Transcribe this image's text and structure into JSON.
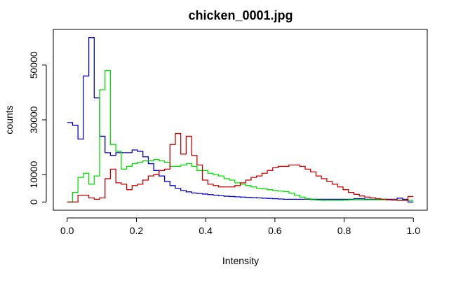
{
  "chart_data": {
    "type": "line",
    "title": "chicken_0001.jpg",
    "xlabel": "Intensity",
    "ylabel": "counts",
    "xlim": [
      -0.04,
      1.04
    ],
    "ylim": [
      -3000,
      63000
    ],
    "x_ticks": [
      0.0,
      0.2,
      0.4,
      0.6,
      0.8,
      1.0
    ],
    "x_tick_labels": [
      "0.0",
      "0.2",
      "0.4",
      "0.6",
      "0.8",
      "1.0"
    ],
    "y_ticks": [
      0,
      10000,
      30000,
      50000
    ],
    "y_tick_labels": [
      "0",
      "10000",
      "30000",
      "50000"
    ],
    "grid": false,
    "legend": "none",
    "step_style": "histogram",
    "bin_width": 0.015625,
    "x": [
      0,
      0.015625,
      0.03125,
      0.046875,
      0.0625,
      0.078125,
      0.09375,
      0.109375,
      0.125,
      0.140625,
      0.15625,
      0.171875,
      0.1875,
      0.203125,
      0.21875,
      0.234375,
      0.25,
      0.265625,
      0.28125,
      0.296875,
      0.3125,
      0.328125,
      0.34375,
      0.359375,
      0.375,
      0.390625,
      0.40625,
      0.421875,
      0.4375,
      0.453125,
      0.46875,
      0.484375,
      0.5,
      0.515625,
      0.53125,
      0.546875,
      0.5625,
      0.578125,
      0.59375,
      0.609375,
      0.625,
      0.640625,
      0.65625,
      0.671875,
      0.6875,
      0.703125,
      0.71875,
      0.734375,
      0.75,
      0.765625,
      0.78125,
      0.796875,
      0.8125,
      0.828125,
      0.84375,
      0.859375,
      0.875,
      0.890625,
      0.90625,
      0.921875,
      0.9375,
      0.953125,
      0.96875,
      0.984375
    ],
    "series": [
      {
        "color": "#0000cd",
        "values": [
          29000,
          28000,
          23000,
          46000,
          60000,
          38000,
          24000,
          18000,
          17000,
          18000,
          18000,
          18000,
          19000,
          18500,
          16500,
          14000,
          11500,
          9500,
          7500,
          6000,
          5000,
          4200,
          3700,
          3300,
          3100,
          2900,
          2700,
          2500,
          2300,
          2100,
          2000,
          1900,
          1800,
          1700,
          1600,
          1500,
          1400,
          1300,
          1200,
          1100,
          1000,
          1000,
          1000,
          1000,
          1000,
          1000,
          1000,
          1000,
          1000,
          1000,
          1000,
          1000,
          1000,
          1200,
          1200,
          1000,
          1000,
          1000,
          1000,
          1000,
          1000,
          1400,
          1000,
          0
        ]
      },
      {
        "color": "#00e000",
        "values": [
          0,
          3500,
          9000,
          10500,
          6500,
          9500,
          41000,
          48000,
          21000,
          18500,
          12000,
          13000,
          14000,
          14500,
          15000,
          15000,
          15500,
          15000,
          14500,
          13000,
          13000,
          13500,
          14000,
          13000,
          11500,
          11500,
          10500,
          10000,
          9500,
          8500,
          8000,
          7000,
          6500,
          6000,
          5500,
          5000,
          4800,
          4500,
          4200,
          4000,
          3800,
          3200,
          2500,
          1800,
          1200,
          800,
          700,
          600,
          600,
          600,
          600,
          700,
          800,
          800,
          800,
          800,
          800,
          800,
          800,
          800,
          800,
          700,
          700,
          600
        ]
      },
      {
        "color": "#cd0000",
        "values": [
          0,
          0,
          2500,
          2500,
          1500,
          1000,
          1500,
          8500,
          12000,
          7000,
          6500,
          4500,
          6000,
          6500,
          8000,
          9500,
          10000,
          11500,
          12000,
          21000,
          25000,
          17500,
          24000,
          17000,
          13500,
          8000,
          6500,
          6000,
          5500,
          5500,
          5500,
          6000,
          7000,
          8000,
          9000,
          9500,
          10500,
          11500,
          12500,
          13000,
          13000,
          13500,
          13500,
          13000,
          12000,
          11000,
          9500,
          8500,
          7500,
          6500,
          5500,
          4500,
          3500,
          2800,
          2200,
          1800,
          1500,
          1200,
          1000,
          800,
          700,
          600,
          600,
          2000
        ]
      }
    ]
  }
}
